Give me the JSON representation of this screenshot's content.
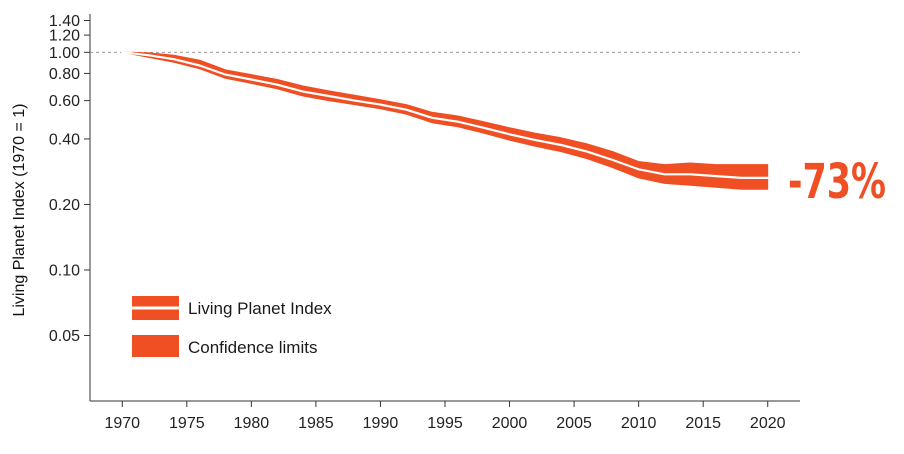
{
  "chart_data": {
    "type": "area",
    "ylabel": "Living Planet Index (1970 = 1)",
    "xlabel": "",
    "y_scale": "log",
    "ylim": [
      0.025,
      1.5
    ],
    "xlim": [
      1967.5,
      2022.5
    ],
    "x_ticks": [
      1970,
      1975,
      1980,
      1985,
      1990,
      1995,
      2000,
      2005,
      2010,
      2015,
      2020
    ],
    "y_ticks": [
      0.05,
      0.1,
      0.2,
      0.4,
      0.6,
      0.8,
      1.0,
      1.2,
      1.4
    ],
    "y_tick_labels": [
      "0.05",
      "0.10",
      "0.20",
      "0.40",
      "0.60",
      "0.80",
      "1.00",
      "1.20",
      "1.40"
    ],
    "reference_line": 1.0,
    "grid": false,
    "legend_position": "bottom-left",
    "series": [
      {
        "name": "Living Planet Index",
        "x": [
          1970,
          1972,
          1974,
          1976,
          1978,
          1980,
          1982,
          1984,
          1986,
          1988,
          1990,
          1992,
          1994,
          1996,
          1998,
          2000,
          2002,
          2004,
          2006,
          2008,
          2010,
          2012,
          2014,
          2016,
          2018,
          2020
        ],
        "y": [
          1.0,
          0.97,
          0.93,
          0.87,
          0.79,
          0.75,
          0.71,
          0.66,
          0.63,
          0.6,
          0.575,
          0.545,
          0.5,
          0.48,
          0.45,
          0.42,
          0.395,
          0.375,
          0.35,
          0.32,
          0.29,
          0.275,
          0.275,
          0.27,
          0.265,
          0.265
        ],
        "lower": [
          1.0,
          0.95,
          0.9,
          0.84,
          0.76,
          0.72,
          0.68,
          0.63,
          0.6,
          0.575,
          0.55,
          0.52,
          0.475,
          0.455,
          0.425,
          0.395,
          0.37,
          0.35,
          0.325,
          0.295,
          0.265,
          0.25,
          0.245,
          0.24,
          0.235,
          0.235
        ],
        "upper": [
          1.0,
          0.995,
          0.97,
          0.92,
          0.83,
          0.79,
          0.75,
          0.7,
          0.665,
          0.635,
          0.605,
          0.575,
          0.53,
          0.51,
          0.48,
          0.45,
          0.425,
          0.405,
          0.38,
          0.35,
          0.315,
          0.305,
          0.31,
          0.305,
          0.305,
          0.305
        ]
      }
    ],
    "legend": [
      {
        "label": "Living Planet Index",
        "kind": "line"
      },
      {
        "label": "Confidence limits",
        "kind": "band"
      }
    ],
    "annotation": "-73%"
  },
  "colors": {
    "band": "#F04E23",
    "index_line": "#FFFFFF",
    "reference_line": "#9A9A9A",
    "axis": "#333333",
    "annotation": "#F04E23"
  }
}
